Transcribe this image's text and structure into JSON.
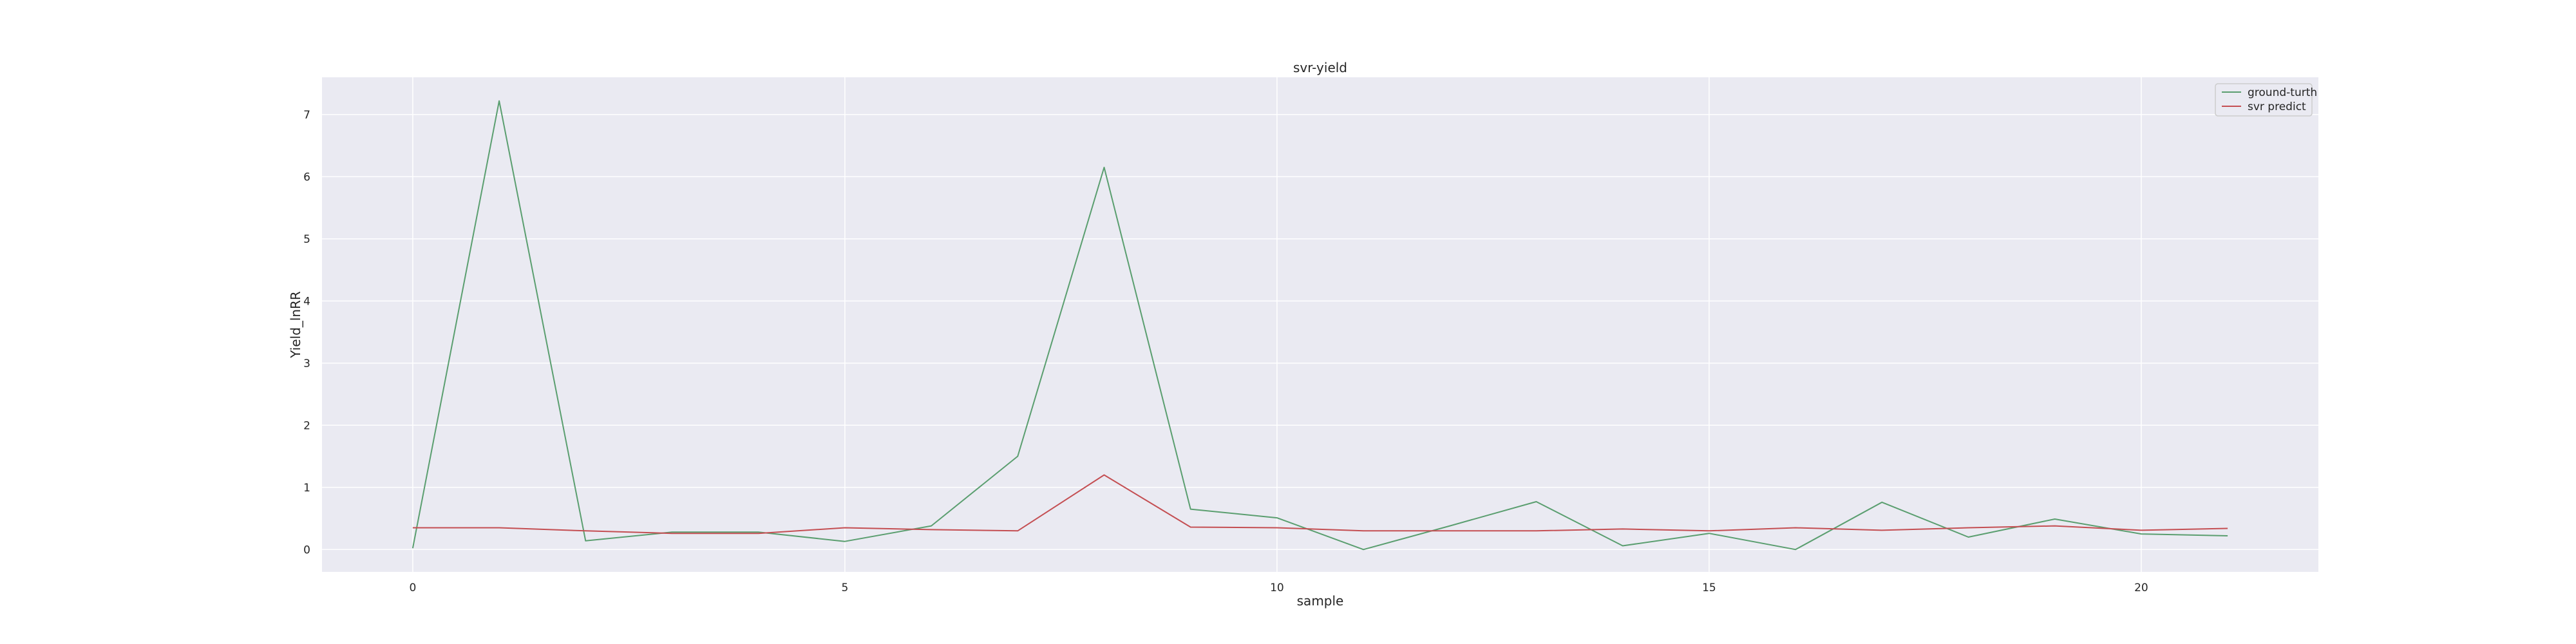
{
  "chart_data": {
    "type": "line",
    "title": "svr-yield",
    "xlabel": "sample",
    "ylabel": "Yield_lnRR",
    "xlim": [
      -1.05,
      22.05
    ],
    "ylim": [
      -0.36,
      7.6
    ],
    "xticks": [
      0,
      5,
      10,
      15,
      20
    ],
    "yticks": [
      0,
      1,
      2,
      3,
      4,
      5,
      6,
      7
    ],
    "grid": true,
    "legend_position": "top-right",
    "x": [
      0,
      1,
      2,
      3,
      4,
      5,
      6,
      7,
      8,
      9,
      10,
      11,
      12,
      13,
      14,
      15,
      16,
      17,
      18,
      19,
      20,
      21
    ],
    "series": [
      {
        "name": "ground-turth",
        "color": "#5a9e6f",
        "values": [
          0.02,
          7.22,
          0.14,
          0.28,
          0.28,
          0.13,
          0.38,
          1.5,
          6.15,
          0.65,
          0.51,
          0.0,
          0.38,
          0.77,
          0.06,
          0.26,
          0.0,
          0.76,
          0.2,
          0.49,
          0.25,
          0.22
        ]
      },
      {
        "name": "svr predict",
        "color": "#c44e52",
        "values": [
          0.35,
          0.35,
          0.3,
          0.26,
          0.26,
          0.35,
          0.32,
          0.3,
          1.2,
          0.36,
          0.35,
          0.3,
          0.3,
          0.3,
          0.33,
          0.3,
          0.35,
          0.31,
          0.35,
          0.38,
          0.31,
          0.34
        ]
      }
    ]
  },
  "style": {
    "plot_bg": "#eaeaf2",
    "grid_color": "#ffffff",
    "text_color": "#262626"
  }
}
